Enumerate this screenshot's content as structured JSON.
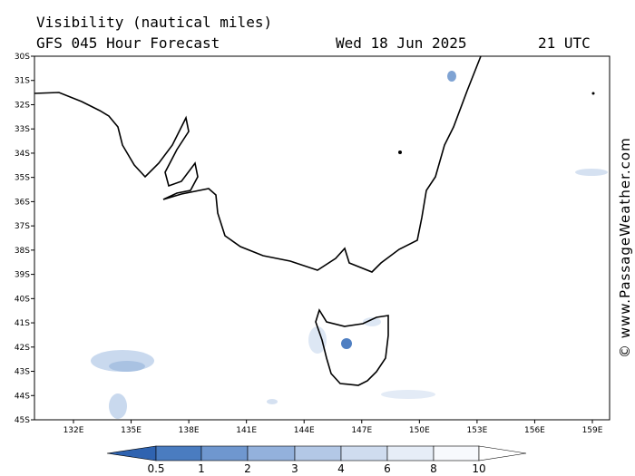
{
  "header": {
    "title": "Visibility (nautical miles)",
    "model": "GFS 045 Hour Forecast",
    "date": "Wed 18 Jun 2025",
    "time": "21 UTC"
  },
  "map": {
    "lat_labels": [
      "30S",
      "31S",
      "32S",
      "33S",
      "34S",
      "35S",
      "36S",
      "37S",
      "38S",
      "39S",
      "40S",
      "41S",
      "42S",
      "43S",
      "44S",
      "45S"
    ],
    "lon_labels": [
      "132E",
      "135E",
      "138E",
      "141E",
      "144E",
      "147E",
      "150E",
      "153E",
      "156E",
      "159E"
    ]
  },
  "colorbar": {
    "labels": [
      0.5,
      1,
      2,
      3,
      4,
      6,
      8,
      10
    ]
  },
  "watermark": "© www.PassageWeather.com"
}
